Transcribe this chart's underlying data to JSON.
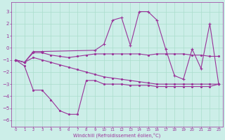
{
  "xlabel": "Windchill (Refroidissement éolien,°C)",
  "background_color": "#cceee8",
  "grid_color": "#aaddcc",
  "line_color": "#993399",
  "xlim": [
    -0.5,
    23.5
  ],
  "ylim": [
    -6.5,
    3.8
  ],
  "yticks": [
    -6,
    -5,
    -4,
    -3,
    -2,
    -1,
    0,
    1,
    2,
    3
  ],
  "xticks": [
    0,
    1,
    2,
    3,
    4,
    5,
    6,
    7,
    8,
    9,
    10,
    11,
    12,
    13,
    14,
    15,
    16,
    17,
    18,
    19,
    20,
    21,
    22,
    23
  ],
  "series": [
    {
      "x": [
        0,
        1,
        2,
        3,
        4,
        5,
        6,
        7,
        8,
        9,
        10,
        11,
        12,
        13,
        14,
        15,
        16,
        17,
        18,
        19,
        20,
        21,
        22,
        23
      ],
      "y": [
        -1.0,
        -1.2,
        -0.4,
        -0.4,
        -0.6,
        -0.7,
        -0.8,
        -0.7,
        -0.6,
        -0.5,
        -0.5,
        -0.5,
        -0.5,
        -0.5,
        -0.5,
        -0.6,
        -0.5,
        -0.5,
        -0.5,
        -0.5,
        -0.6,
        -0.6,
        -0.7,
        -0.7
      ]
    },
    {
      "x": [
        0,
        1,
        2,
        3,
        4,
        5,
        6,
        7,
        8,
        9,
        10,
        11,
        12,
        13,
        14,
        15,
        16,
        17,
        18,
        19,
        20,
        21,
        22,
        23
      ],
      "y": [
        -1.0,
        -1.2,
        -0.8,
        -1.0,
        -1.2,
        -1.4,
        -1.6,
        -1.8,
        -2.0,
        -2.2,
        -2.4,
        -2.5,
        -2.6,
        -2.7,
        -2.8,
        -2.9,
        -3.0,
        -3.0,
        -3.0,
        -3.0,
        -3.0,
        -3.0,
        -3.0,
        -3.0
      ]
    },
    {
      "x": [
        0,
        1,
        2,
        3,
        4,
        5,
        6,
        7,
        8,
        9,
        10,
        11,
        12,
        13,
        14,
        15,
        16,
        17,
        18,
        19,
        20,
        21,
        22,
        23
      ],
      "y": [
        -1.0,
        -1.5,
        -3.5,
        -3.5,
        -4.3,
        -5.2,
        -5.5,
        -5.5,
        -2.7,
        -2.7,
        -3.0,
        -3.0,
        -3.0,
        -3.1,
        -3.1,
        -3.1,
        -3.2,
        -3.2,
        -3.2,
        -3.2,
        -3.2,
        -3.2,
        -3.2,
        -3.0
      ]
    },
    {
      "x": [
        0,
        1,
        2,
        3,
        9,
        10,
        11,
        12,
        13,
        14,
        15,
        16,
        17,
        18,
        19,
        20,
        21,
        22,
        23
      ],
      "y": [
        -1.0,
        -1.2,
        -0.3,
        -0.3,
        -0.2,
        0.3,
        2.3,
        2.5,
        0.2,
        3.0,
        3.0,
        2.3,
        -0.1,
        -2.3,
        -2.6,
        -0.1,
        -1.7,
        2.0,
        -3.0
      ]
    }
  ]
}
